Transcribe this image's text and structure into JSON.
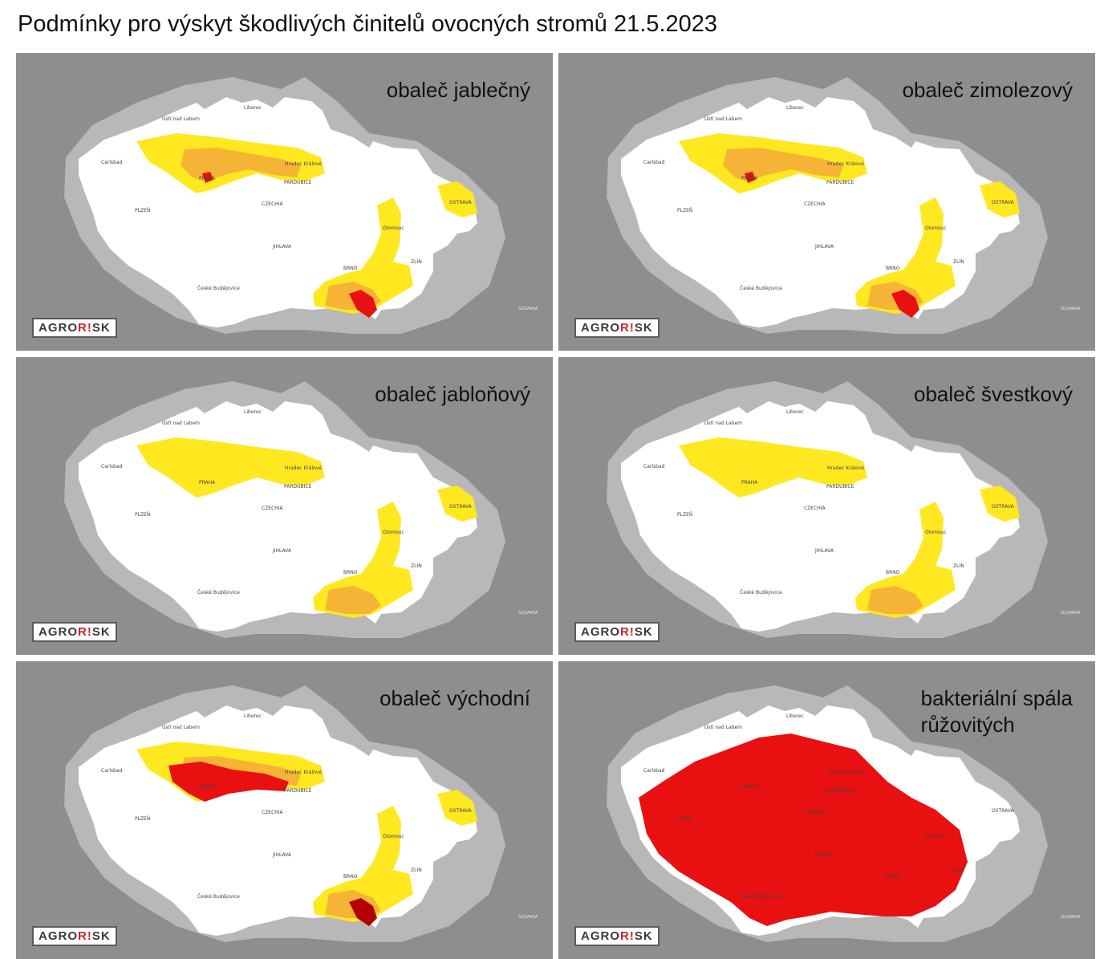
{
  "title": "Podmínky pro výskyt škodlivých činitelů ovocných stromů 21.5.2023",
  "colors": {
    "background": "#8e8e8e",
    "neighbor": "#b8b8b8",
    "country": "#ffffff",
    "yellow": "#ffe820",
    "orange": "#f5b435",
    "red": "#e81010",
    "darkred": "#b40000"
  },
  "logo": {
    "part1": "AGRO",
    "part2": "R!",
    "part3": "SK"
  },
  "cities": {
    "praha": "PRAHA",
    "czechia": "CZECHIA",
    "plzen": "PLZEŇ",
    "jihlava": "JIHLAVA",
    "brno": "BRNO",
    "ostrava": "OSTRAVA",
    "zlin": "ZLÍN",
    "olomouc": "Olomouc",
    "hradec": "Hradec Králové",
    "pardubice": "PARDUBICE",
    "liberec": "Liberec",
    "usti": "Ústí nad Labem",
    "budejovice": "České Budějovice",
    "karlovy": "Carlsbad",
    "slovakia": "SLOVAKIA"
  },
  "panels": [
    {
      "id": "p1",
      "label_lines": [
        "obaleč jablečný"
      ],
      "risk": {
        "yellow": 0.35,
        "orange": 0.35,
        "red": 0.05
      }
    },
    {
      "id": "p2",
      "label_lines": [
        "obaleč zimolezový"
      ],
      "risk": {
        "yellow": 0.5,
        "orange": 0.35,
        "red": 0.03
      }
    },
    {
      "id": "p3",
      "label_lines": [
        "obaleč jabloňový"
      ],
      "risk": {
        "yellow": 0.35,
        "orange": 0.1,
        "red": 0
      }
    },
    {
      "id": "p4",
      "label_lines": [
        "obaleč švestkový"
      ],
      "risk": {
        "yellow": 0.3,
        "orange": 0.08,
        "red": 0
      }
    },
    {
      "id": "p5",
      "label_lines": [
        "obaleč východní"
      ],
      "risk": {
        "yellow": 0.4,
        "orange": 0.3,
        "red": 0.2
      }
    },
    {
      "id": "p6",
      "label_lines": [
        "bakteriální spála",
        "růžovitých"
      ],
      "risk": {
        "yellow": 0,
        "orange": 0,
        "red": 0.8
      }
    }
  ]
}
